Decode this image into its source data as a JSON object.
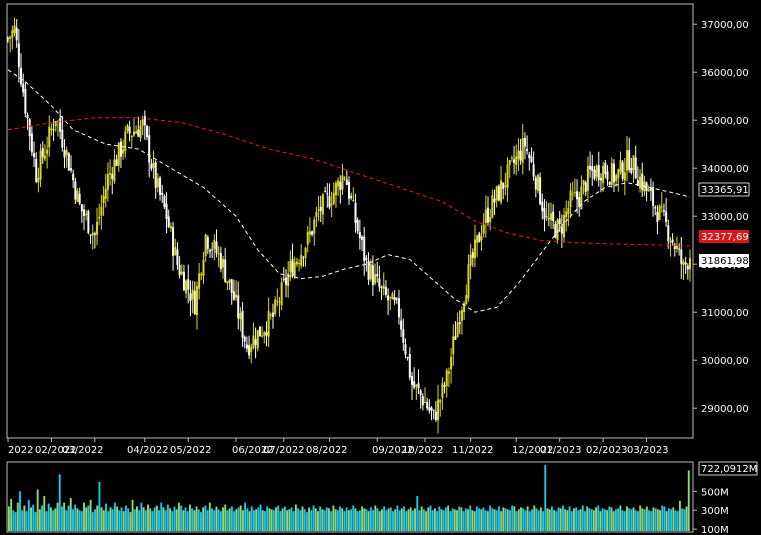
{
  "chart_data": [
    {
      "type": "candlestick",
      "title": "",
      "x_ticks": [
        "2022",
        "02/2022",
        "03/2022",
        "04/2022",
        "05/2022",
        "06/2022",
        "07/2022",
        "08/2022",
        "09/2022",
        "10/2022",
        "11/2022",
        "12/2022",
        "01/2023",
        "02/2023",
        "03/2023"
      ],
      "y_ticks": [
        "37000,00",
        "36000,00",
        "35000,00",
        "34000,00",
        "33000,00",
        "32000,00",
        "31000,00",
        "30000,00",
        "29000,00"
      ],
      "ylim": [
        28400,
        37400
      ],
      "grid": false,
      "series": [
        {
          "kind": "price",
          "colors": {
            "up": "#d8d820",
            "down": "#ffffff"
          },
          "anchors": [
            [
              0,
              36700
            ],
            [
              3,
              36900
            ],
            [
              8,
              35300
            ],
            [
              13,
              33900
            ],
            [
              18,
              34500
            ],
            [
              22,
              35100
            ],
            [
              27,
              34300
            ],
            [
              33,
              33200
            ],
            [
              40,
              32600
            ],
            [
              46,
              33800
            ],
            [
              55,
              34700
            ],
            [
              62,
              34900
            ],
            [
              68,
              33700
            ],
            [
              73,
              33000
            ],
            [
              78,
              32000
            ],
            [
              86,
              31200
            ],
            [
              91,
              32600
            ],
            [
              98,
              32100
            ],
            [
              104,
              31300
            ],
            [
              110,
              30300
            ],
            [
              116,
              30600
            ],
            [
              122,
              30900
            ],
            [
              130,
              31900
            ],
            [
              138,
              32500
            ],
            [
              143,
              33100
            ],
            [
              150,
              33500
            ],
            [
              155,
              33900
            ],
            [
              160,
              32900
            ],
            [
              165,
              32000
            ],
            [
              172,
              31400
            ],
            [
              180,
              31000
            ],
            [
              186,
              29500
            ],
            [
              191,
              29200
            ],
            [
              196,
              28800
            ],
            [
              202,
              29600
            ],
            [
              207,
              30800
            ],
            [
              212,
              31800
            ],
            [
              219,
              32900
            ],
            [
              226,
              33500
            ],
            [
              233,
              34100
            ],
            [
              238,
              34500
            ],
            [
              243,
              33800
            ],
            [
              248,
              32900
            ],
            [
              254,
              32700
            ],
            [
              259,
              33300
            ],
            [
              263,
              33400
            ],
            [
              268,
              33900
            ],
            [
              274,
              34000
            ],
            [
              280,
              33800
            ],
            [
              286,
              34200
            ],
            [
              292,
              33700
            ],
            [
              298,
              33200
            ],
            [
              303,
              32800
            ],
            [
              308,
              32300
            ],
            [
              311,
              31900
            ],
            [
              314,
              32200
            ]
          ]
        },
        {
          "kind": "moving_average",
          "name": "",
          "color": "#ffffff",
          "style": "dashed",
          "last_value": "33365,91",
          "points": [
            [
              0,
              36050
            ],
            [
              8,
              35800
            ],
            [
              20,
              35300
            ],
            [
              30,
              34800
            ],
            [
              45,
              34500
            ],
            [
              60,
              34400
            ],
            [
              75,
              34000
            ],
            [
              90,
              33600
            ],
            [
              105,
              33000
            ],
            [
              115,
              32300
            ],
            [
              125,
              31800
            ],
            [
              135,
              31700
            ],
            [
              145,
              31750
            ],
            [
              155,
              31900
            ],
            [
              165,
              32000
            ],
            [
              175,
              32200
            ],
            [
              185,
              32100
            ],
            [
              195,
              31700
            ],
            [
              205,
              31300
            ],
            [
              215,
              31000
            ],
            [
              225,
              31100
            ],
            [
              235,
              31600
            ],
            [
              245,
              32200
            ],
            [
              255,
              32800
            ],
            [
              265,
              33300
            ],
            [
              275,
              33600
            ],
            [
              285,
              33700
            ],
            [
              295,
              33600
            ],
            [
              305,
              33500
            ],
            [
              314,
              33400
            ]
          ]
        },
        {
          "kind": "moving_average",
          "name": "",
          "color": "#e02020",
          "style": "dashed",
          "last_value": "32377,69",
          "points": [
            [
              0,
              34800
            ],
            [
              20,
              34950
            ],
            [
              40,
              35050
            ],
            [
              60,
              35050
            ],
            [
              80,
              34950
            ],
            [
              100,
              34700
            ],
            [
              120,
              34400
            ],
            [
              140,
              34200
            ],
            [
              160,
              33900
            ],
            [
              180,
              33600
            ],
            [
              200,
              33300
            ],
            [
              215,
              32900
            ],
            [
              230,
              32650
            ],
            [
              245,
              32500
            ],
            [
              260,
              32450
            ],
            [
              280,
              32420
            ],
            [
              300,
              32400
            ],
            [
              314,
              32380
            ]
          ]
        }
      ],
      "price_label": "31861,98"
    },
    {
      "type": "bar",
      "title": "",
      "y_ticks": [
        "500M",
        "300M",
        "100M"
      ],
      "ylim": [
        80,
        800
      ],
      "colors": {
        "a": "#23c4ee",
        "b": "#8ada7a"
      },
      "last_value": "722,0912M",
      "series": [
        {
          "name": "",
          "values": [
            340,
            420,
            300,
            280,
            380,
            500,
            300,
            350,
            290,
            410,
            330,
            360,
            280,
            520,
            310,
            350,
            450,
            290,
            370,
            330,
            300,
            320,
            380,
            680,
            340,
            380,
            300,
            350,
            430,
            310,
            360,
            320,
            300,
            290,
            380,
            330,
            350,
            410,
            280,
            310,
            350,
            600,
            330,
            300,
            370,
            290,
            330,
            310,
            380,
            340,
            300,
            330,
            290,
            350,
            320,
            280,
            410,
            310,
            340,
            300,
            380,
            330,
            300,
            360,
            320,
            290,
            330,
            350,
            300,
            380,
            330,
            300,
            360,
            320,
            290,
            340,
            310,
            380,
            350,
            300,
            330,
            290,
            360,
            320,
            300,
            340,
            310,
            280,
            330,
            350,
            300,
            380,
            320,
            300,
            340,
            310,
            290,
            330,
            360,
            300,
            320,
            340,
            290,
            310,
            330,
            350,
            300,
            380,
            320,
            290,
            340,
            300,
            310,
            330,
            360,
            300,
            290,
            340,
            320,
            310,
            300,
            330,
            350,
            290,
            320,
            340,
            300,
            310,
            330,
            290,
            360,
            320,
            300,
            340,
            310,
            280,
            330,
            300,
            350,
            320,
            290,
            340,
            310,
            300,
            330,
            320,
            290,
            350,
            310,
            300,
            340,
            320,
            290,
            330,
            300,
            310,
            350,
            320,
            290,
            300,
            340,
            320,
            310,
            290,
            330,
            300,
            350,
            320,
            290,
            310,
            340,
            300,
            320,
            330,
            290,
            310,
            350,
            300,
            320,
            340,
            290,
            310,
            330,
            300,
            320,
            450,
            300,
            340,
            310,
            290,
            330,
            350,
            300,
            320,
            290,
            340,
            310,
            300,
            330,
            350,
            290,
            320,
            310,
            300,
            340,
            330,
            290,
            320,
            310,
            350,
            300,
            290,
            340,
            320,
            310,
            330,
            300,
            290,
            350,
            320,
            310,
            300,
            340,
            290,
            330,
            320,
            310,
            300,
            350,
            340,
            290,
            310,
            330,
            320,
            300,
            340,
            290,
            310,
            350,
            320,
            300,
            330,
            290,
            780,
            320,
            310,
            340,
            300,
            290,
            330,
            320,
            350,
            310,
            300,
            340,
            290,
            320,
            330,
            300,
            310,
            350,
            290,
            340,
            320,
            310,
            300,
            330,
            350,
            290,
            320,
            310,
            300,
            340,
            330,
            290,
            310,
            320,
            350,
            300,
            290,
            340,
            320,
            310,
            330,
            300,
            290,
            350,
            320,
            310,
            340,
            300,
            290,
            330,
            320,
            310,
            300,
            350,
            340,
            290,
            320,
            310,
            330,
            300,
            290,
            400,
            320,
            310,
            340,
            722
          ]
        }
      ]
    }
  ]
}
